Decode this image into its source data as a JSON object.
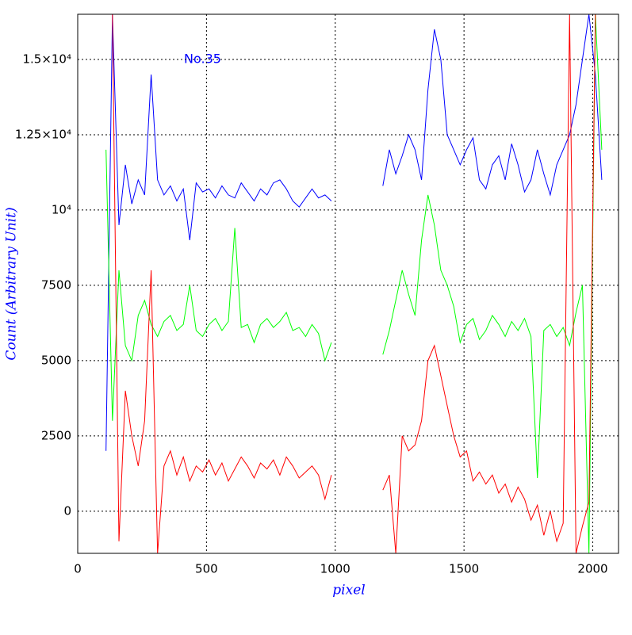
{
  "chart_data": {
    "type": "line",
    "xlabel": "pixel",
    "ylabel": "Count (Arbitrary Unit)",
    "annotation": "No.35",
    "x": [
      110,
      135,
      160,
      185,
      210,
      235,
      260,
      285,
      310,
      335,
      360,
      385,
      410,
      435,
      460,
      485,
      510,
      535,
      560,
      585,
      610,
      635,
      660,
      685,
      710,
      735,
      760,
      785,
      810,
      835,
      860,
      885,
      910,
      935,
      960,
      985,
      1010,
      1035,
      1060,
      1085,
      1110,
      1135,
      1160,
      1185,
      1210,
      1235,
      1260,
      1285,
      1310,
      1335,
      1360,
      1385,
      1410,
      1435,
      1460,
      1485,
      1510,
      1535,
      1560,
      1585,
      1610,
      1635,
      1660,
      1685,
      1710,
      1735,
      1760,
      1785,
      1810,
      1835,
      1860,
      1885,
      1910,
      1935,
      1960,
      1985,
      2010,
      2035
    ],
    "series": [
      {
        "name": "blue",
        "color": "#0000ff",
        "values": [
          2000,
          16500,
          9500,
          11500,
          10200,
          11000,
          10500,
          14500,
          11000,
          10500,
          10800,
          10300,
          10700,
          9000,
          10900,
          10600,
          10700,
          10400,
          10800,
          10500,
          10400,
          10900,
          10600,
          10300,
          10700,
          10500,
          10900,
          11000,
          10700,
          10300,
          10100,
          10400,
          10700,
          10400,
          10500,
          10300,
          null,
          null,
          null,
          null,
          null,
          null,
          null,
          10800,
          12000,
          11200,
          11800,
          12500,
          12000,
          11000,
          14000,
          16000,
          15000,
          12500,
          12000,
          11500,
          12000,
          12400,
          11000,
          10700,
          11500,
          11800,
          11000,
          12200,
          11500,
          10600,
          11000,
          12000,
          11200,
          10500,
          11500,
          12000,
          12500,
          13500,
          15000,
          16500,
          14500,
          11000
        ]
      },
      {
        "name": "green",
        "color": "#00ff00",
        "values": [
          12000,
          3000,
          8000,
          5500,
          5000,
          6500,
          7000,
          6200,
          5800,
          6300,
          6500,
          6000,
          6200,
          7500,
          6000,
          5800,
          6200,
          6400,
          6000,
          6300,
          9400,
          6100,
          6200,
          5600,
          6200,
          6400,
          6100,
          6300,
          6600,
          6000,
          6100,
          5800,
          6200,
          5900,
          5000,
          5600,
          null,
          null,
          null,
          null,
          null,
          null,
          null,
          5200,
          6000,
          7000,
          8000,
          7200,
          6500,
          9000,
          10500,
          9500,
          8000,
          7500,
          6800,
          5600,
          6200,
          6400,
          5700,
          6000,
          6500,
          6200,
          5800,
          6300,
          6000,
          6400,
          5800,
          1100,
          6000,
          6200,
          5800,
          6100,
          5500,
          6600,
          7500,
          -1400,
          16500,
          12000
        ]
      },
      {
        "name": "red",
        "color": "#ff0000",
        "values": [
          null,
          16500,
          -1000,
          4000,
          2500,
          1500,
          3000,
          8000,
          -1400,
          1500,
          2000,
          1200,
          1800,
          1000,
          1500,
          1300,
          1700,
          1200,
          1600,
          1000,
          1400,
          1800,
          1500,
          1100,
          1600,
          1400,
          1700,
          1200,
          1800,
          1500,
          1100,
          1300,
          1500,
          1200,
          400,
          1200,
          null,
          null,
          null,
          null,
          null,
          null,
          null,
          700,
          1200,
          -1400,
          2500,
          2000,
          2200,
          3000,
          5000,
          5500,
          4500,
          3500,
          2500,
          1800,
          2000,
          1000,
          1300,
          900,
          1200,
          600,
          900,
          300,
          800,
          400,
          -300,
          200,
          -800,
          0,
          -1000,
          -400,
          16500,
          -1400,
          -500,
          300,
          16500,
          null
        ]
      }
    ],
    "xlim": [
      0,
      2100
    ],
    "xticks": [
      0,
      500,
      1000,
      1500,
      2000
    ],
    "ylim": [
      -1400,
      16500
    ],
    "yticks": [
      0,
      2500,
      5000,
      7500,
      {
        "value": 10000,
        "label": "10⁴"
      },
      {
        "value": 12500,
        "label": "1.25×10⁴"
      },
      {
        "value": 15000,
        "label": "1.5×10⁴"
      }
    ],
    "grid": true
  }
}
